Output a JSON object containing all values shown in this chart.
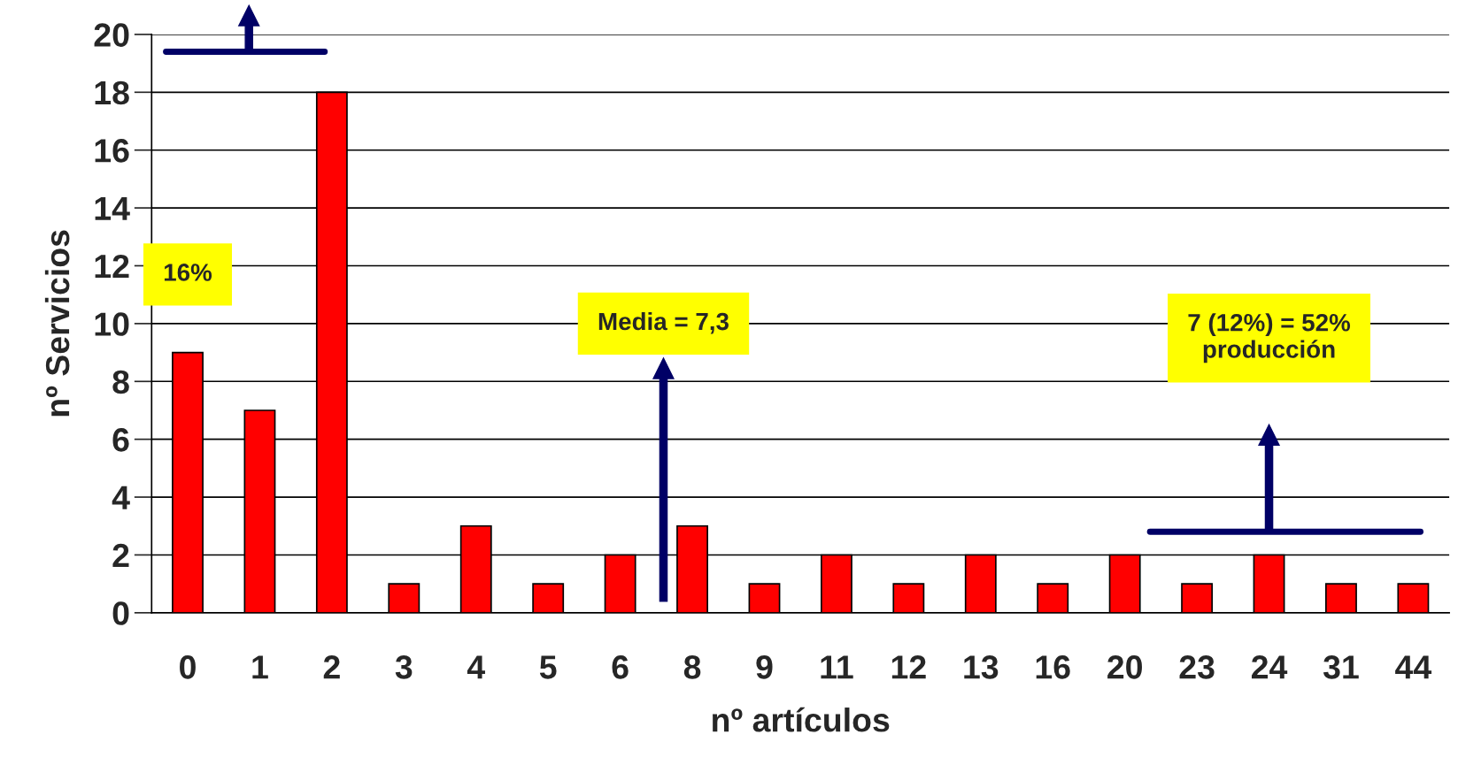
{
  "chart_data": {
    "type": "bar",
    "xlabel": "nº artículos",
    "ylabel": "nº Servicios",
    "categories": [
      "0",
      "1",
      "2",
      "3",
      "4",
      "5",
      "6",
      "8",
      "9",
      "11",
      "12",
      "13",
      "16",
      "20",
      "23",
      "24",
      "31",
      "44"
    ],
    "values": [
      9,
      7,
      18,
      1,
      3,
      1,
      2,
      3,
      1,
      2,
      1,
      2,
      1,
      2,
      1,
      2,
      1,
      1
    ],
    "color": "#ff0000",
    "ylim": [
      0,
      20
    ],
    "yticks": [
      0,
      2,
      4,
      6,
      8,
      10,
      12,
      14,
      16,
      18,
      20
    ],
    "grid": "y",
    "annotations": [
      "16%",
      "Media = 7,3",
      "7 (12%) = 52%\nproducción"
    ]
  }
}
